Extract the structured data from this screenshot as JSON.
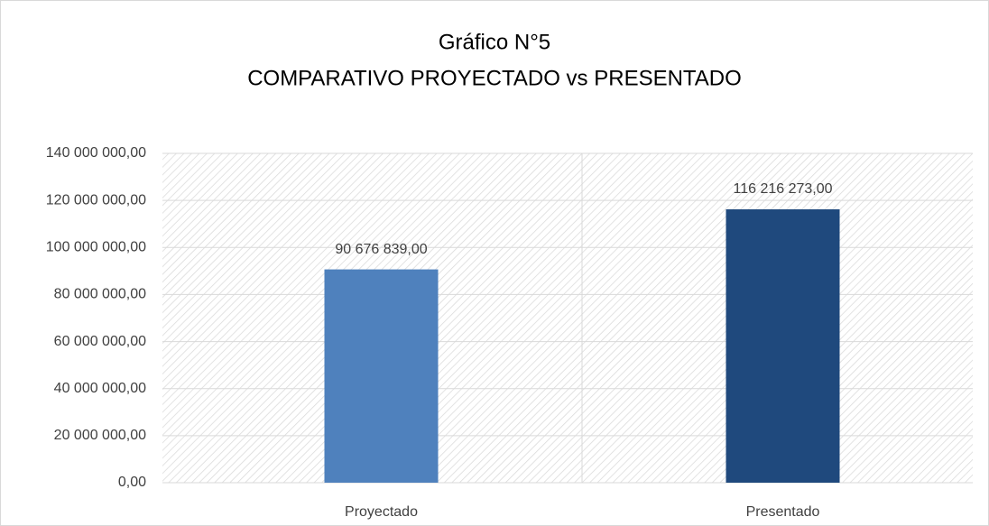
{
  "chart_data": {
    "type": "bar",
    "title": "Gráfico N°5",
    "subtitle": "COMPARATIVO PROYECTADO vs PRESENTADO",
    "categories": [
      "Proyectado",
      "Presentado"
    ],
    "values": [
      90676839,
      116216273
    ],
    "value_labels": [
      "90 676 839,00",
      "116 216 273,00"
    ],
    "colors": [
      "#4f81bd",
      "#1f497d"
    ],
    "ylim": [
      0,
      140000000
    ],
    "yticks": [
      {
        "value": 0,
        "label": "0,00"
      },
      {
        "value": 20000000,
        "label": "20 000 000,00"
      },
      {
        "value": 40000000,
        "label": "40 000 000,00"
      },
      {
        "value": 60000000,
        "label": "60 000 000,00"
      },
      {
        "value": 80000000,
        "label": "80 000 000,00"
      },
      {
        "value": 100000000,
        "label": "100 000 000,00"
      },
      {
        "value": 120000000,
        "label": "120 000 000,00"
      },
      {
        "value": 140000000,
        "label": "140 000 000,00"
      }
    ],
    "grid": true
  }
}
